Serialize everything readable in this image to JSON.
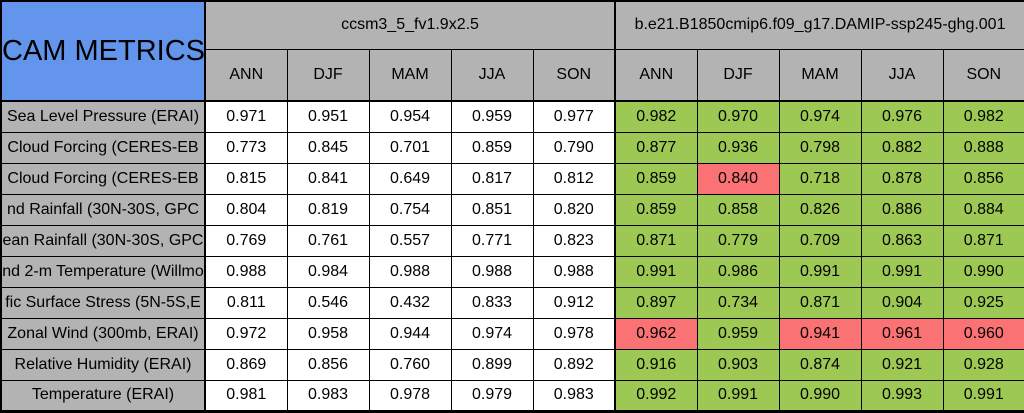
{
  "title": "CAM METRICS",
  "colors": {
    "corner_bg": "#6495ED",
    "header_bg": "#B3B3B3",
    "row_label_bg": "#B3B3B3",
    "value_bg": "#FFFFFF",
    "better_cell_bg": "#9DC853",
    "worse_cell_bg": "#FA7273",
    "border": "#000000",
    "text": "#000000"
  },
  "chart_data": {
    "type": "table",
    "title": "CAM METRICS",
    "column_groups": [
      {
        "label": "ccsm3_5_fv1.9x2.5",
        "columns": [
          "ANN",
          "DJF",
          "MAM",
          "JJA",
          "SON"
        ]
      },
      {
        "label": "b.e21.B1850cmip6.f09_g17.DAMIP-ssp245-ghg.001",
        "columns": [
          "ANN",
          "DJF",
          "MAM",
          "JJA",
          "SON"
        ]
      }
    ],
    "rows": [
      {
        "label": "Sea Level Pressure (ERAI)",
        "values_group1": [
          "0.971",
          "0.951",
          "0.954",
          "0.959",
          "0.977"
        ],
        "values_group2": [
          "0.982",
          "0.970",
          "0.974",
          "0.976",
          "0.982"
        ],
        "group2_cell_status": [
          "better",
          "better",
          "better",
          "better",
          "better"
        ]
      },
      {
        "label": "Cloud Forcing (CERES-EB",
        "values_group1": [
          "0.773",
          "0.845",
          "0.701",
          "0.859",
          "0.790"
        ],
        "values_group2": [
          "0.877",
          "0.936",
          "0.798",
          "0.882",
          "0.888"
        ],
        "group2_cell_status": [
          "better",
          "better",
          "better",
          "better",
          "better"
        ]
      },
      {
        "label": "Cloud Forcing (CERES-EB",
        "values_group1": [
          "0.815",
          "0.841",
          "0.649",
          "0.817",
          "0.812"
        ],
        "values_group2": [
          "0.859",
          "0.840",
          "0.718",
          "0.878",
          "0.856"
        ],
        "group2_cell_status": [
          "better",
          "worse",
          "better",
          "better",
          "better"
        ]
      },
      {
        "label": "nd Rainfall (30N-30S, GPC",
        "values_group1": [
          "0.804",
          "0.819",
          "0.754",
          "0.851",
          "0.820"
        ],
        "values_group2": [
          "0.859",
          "0.858",
          "0.826",
          "0.886",
          "0.884"
        ],
        "group2_cell_status": [
          "better",
          "better",
          "better",
          "better",
          "better"
        ]
      },
      {
        "label": "ean Rainfall (30N-30S, GPC",
        "values_group1": [
          "0.769",
          "0.761",
          "0.557",
          "0.771",
          "0.823"
        ],
        "values_group2": [
          "0.871",
          "0.779",
          "0.709",
          "0.863",
          "0.871"
        ],
        "group2_cell_status": [
          "better",
          "better",
          "better",
          "better",
          "better"
        ]
      },
      {
        "label": "nd 2-m Temperature (Willmo",
        "values_group1": [
          "0.988",
          "0.984",
          "0.988",
          "0.988",
          "0.988"
        ],
        "values_group2": [
          "0.991",
          "0.986",
          "0.991",
          "0.991",
          "0.990"
        ],
        "group2_cell_status": [
          "better",
          "better",
          "better",
          "better",
          "better"
        ]
      },
      {
        "label": "fic Surface Stress (5N-5S,E",
        "values_group1": [
          "0.811",
          "0.546",
          "0.432",
          "0.833",
          "0.912"
        ],
        "values_group2": [
          "0.897",
          "0.734",
          "0.871",
          "0.904",
          "0.925"
        ],
        "group2_cell_status": [
          "better",
          "better",
          "better",
          "better",
          "better"
        ]
      },
      {
        "label": "Zonal Wind (300mb, ERAI)",
        "values_group1": [
          "0.972",
          "0.958",
          "0.944",
          "0.974",
          "0.978"
        ],
        "values_group2": [
          "0.962",
          "0.959",
          "0.941",
          "0.961",
          "0.960"
        ],
        "group2_cell_status": [
          "worse",
          "better",
          "worse",
          "worse",
          "worse"
        ]
      },
      {
        "label": "Relative Humidity (ERAI)",
        "values_group1": [
          "0.869",
          "0.856",
          "0.760",
          "0.899",
          "0.892"
        ],
        "values_group2": [
          "0.916",
          "0.903",
          "0.874",
          "0.921",
          "0.928"
        ],
        "group2_cell_status": [
          "better",
          "better",
          "better",
          "better",
          "better"
        ]
      },
      {
        "label": "Temperature (ERAI)",
        "values_group1": [
          "0.981",
          "0.983",
          "0.978",
          "0.979",
          "0.983"
        ],
        "values_group2": [
          "0.992",
          "0.991",
          "0.990",
          "0.993",
          "0.991"
        ],
        "group2_cell_status": [
          "better",
          "better",
          "better",
          "better",
          "better"
        ]
      }
    ]
  }
}
